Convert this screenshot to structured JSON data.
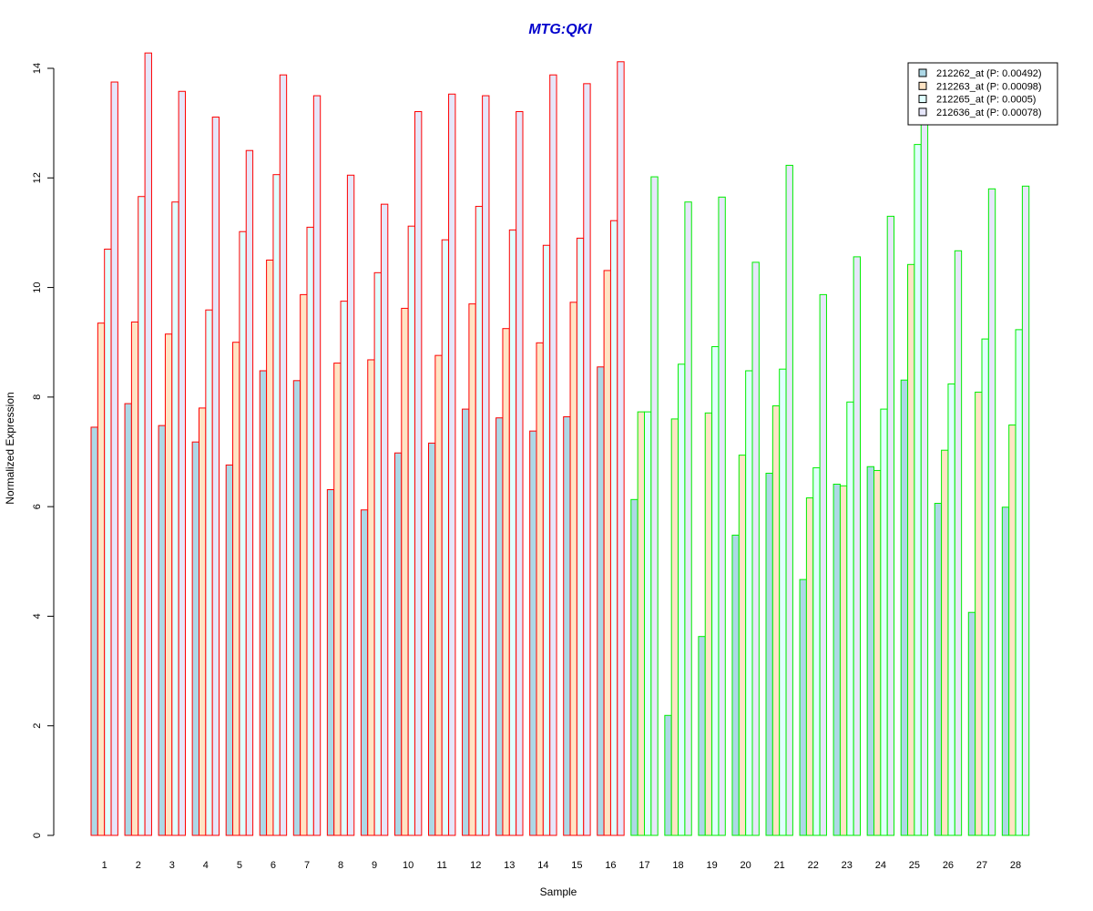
{
  "chart_data": {
    "type": "bar",
    "title": "MTG:QKI",
    "xlabel": "Sample",
    "ylabel": "Normalized Expression",
    "ylim": [
      0,
      14.5
    ],
    "yticks": [
      0,
      2,
      4,
      6,
      8,
      10,
      12,
      14
    ],
    "grid": false,
    "legend_position": "top-right",
    "categories": [
      "1",
      "2",
      "3",
      "4",
      "5",
      "6",
      "7",
      "8",
      "9",
      "10",
      "11",
      "12",
      "13",
      "14",
      "15",
      "16",
      "17",
      "18",
      "19",
      "20",
      "21",
      "22",
      "23",
      "24",
      "25",
      "26",
      "27",
      "28"
    ],
    "group_border_colors": [
      "#ff0000",
      "#ff0000",
      "#ff0000",
      "#ff0000",
      "#ff0000",
      "#ff0000",
      "#ff0000",
      "#ff0000",
      "#ff0000",
      "#ff0000",
      "#ff0000",
      "#ff0000",
      "#ff0000",
      "#ff0000",
      "#ff0000",
      "#ff0000",
      "#00ee00",
      "#00ee00",
      "#00ee00",
      "#00ee00",
      "#00ee00",
      "#00ee00",
      "#00ee00",
      "#00ee00",
      "#00ee00",
      "#00ee00",
      "#00ee00",
      "#00ee00"
    ],
    "series": [
      {
        "name": "212262_at (P: 0.00492)",
        "fill": "#add8e6",
        "values": [
          7.45,
          7.88,
          7.48,
          7.18,
          6.76,
          8.48,
          8.3,
          6.31,
          5.94,
          6.98,
          7.16,
          7.78,
          7.62,
          7.38,
          7.64,
          8.55,
          6.13,
          2.19,
          3.63,
          5.48,
          6.61,
          4.67,
          6.41,
          6.73,
          8.31,
          6.06,
          4.07,
          5.99
        ]
      },
      {
        "name": "212263_at (P: 0.00098)",
        "fill": "#ffe4c4",
        "values": [
          9.35,
          9.37,
          9.15,
          7.8,
          9.0,
          10.5,
          9.87,
          8.62,
          8.68,
          9.62,
          8.76,
          9.7,
          9.25,
          8.99,
          9.73,
          10.31,
          7.73,
          7.6,
          7.71,
          6.94,
          7.84,
          6.16,
          6.38,
          6.66,
          10.42,
          7.03,
          8.09,
          7.49
        ]
      },
      {
        "name": "212265_at (P: 0.0005)",
        "fill": "#e0ffff",
        "values": [
          10.7,
          11.66,
          11.56,
          9.59,
          11.02,
          12.06,
          11.1,
          9.75,
          10.27,
          11.12,
          10.87,
          11.48,
          11.05,
          10.77,
          10.9,
          11.22,
          7.73,
          8.6,
          8.92,
          8.48,
          8.51,
          6.71,
          7.91,
          7.78,
          12.61,
          8.24,
          9.06,
          9.23
        ]
      },
      {
        "name": "212636_at (P: 0.00078)",
        "fill": "#e6e6fa",
        "values": [
          13.75,
          14.28,
          13.58,
          13.11,
          12.5,
          13.88,
          13.5,
          12.05,
          11.52,
          13.21,
          13.53,
          13.5,
          13.21,
          13.88,
          13.72,
          14.12,
          12.02,
          11.56,
          11.65,
          10.46,
          12.23,
          9.87,
          10.56,
          11.3,
          13.1,
          10.67,
          11.8,
          11.85
        ]
      }
    ]
  }
}
